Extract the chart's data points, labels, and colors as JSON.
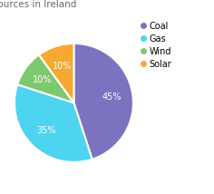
{
  "title": "Power Sources in Ireland",
  "labels": [
    "Coal",
    "Gas",
    "Wind",
    "Solar"
  ],
  "values": [
    45,
    35,
    10,
    10
  ],
  "colors": [
    "#7b72c0",
    "#4dd4f0",
    "#7dc96e",
    "#f5a930"
  ],
  "legend_labels": [
    "Coal",
    "Gas",
    "Wind",
    "Solar"
  ],
  "startangle": 90,
  "background_color": "#ffffff",
  "title_fontsize": 7.5,
  "title_color": "#666666",
  "autopct_fontsize": 7.0,
  "legend_fontsize": 7.0,
  "pct_colors": [
    "white",
    "white",
    "white",
    "white"
  ]
}
